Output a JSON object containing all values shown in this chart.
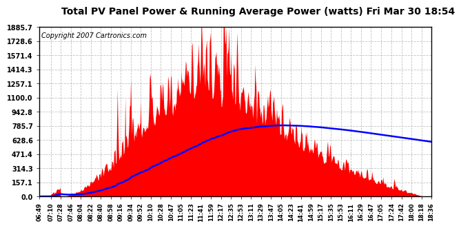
{
  "title": "Total PV Panel Power & Running Average Power (watts) Fri Mar 30 18:54",
  "copyright_text": "Copyright 2007 Cartronics.com",
  "y_tick_labels": [
    "0.0",
    "157.1",
    "314.3",
    "471.4",
    "628.6",
    "785.7",
    "942.8",
    "1100.0",
    "1257.1",
    "1414.3",
    "1571.4",
    "1728.6",
    "1885.7"
  ],
  "y_tick_values": [
    0.0,
    157.1,
    314.3,
    471.4,
    628.6,
    785.7,
    942.8,
    1100.0,
    1257.1,
    1414.3,
    1571.4,
    1728.6,
    1885.7
  ],
  "ylim": [
    0.0,
    1885.7
  ],
  "fill_color": "#FF0000",
  "line_color": "#0000FF",
  "background_color": "#FFFFFF",
  "plot_bg_color": "#FFFFFF",
  "title_fontsize": 10,
  "copyright_fontsize": 7,
  "grid_color": "#BBBBBB",
  "grid_linestyle": "--",
  "x_tick_labels": [
    "06:49",
    "07:10",
    "07:28",
    "07:46",
    "08:04",
    "08:22",
    "08:40",
    "08:58",
    "09:16",
    "09:34",
    "09:52",
    "10:10",
    "10:28",
    "10:47",
    "11:05",
    "11:23",
    "11:41",
    "11:59",
    "12:17",
    "12:35",
    "12:53",
    "13:11",
    "13:29",
    "13:47",
    "14:05",
    "14:23",
    "14:41",
    "14:59",
    "15:17",
    "15:35",
    "15:53",
    "16:11",
    "16:29",
    "16:47",
    "17:05",
    "17:24",
    "17:42",
    "18:00",
    "18:18",
    "18:36"
  ]
}
